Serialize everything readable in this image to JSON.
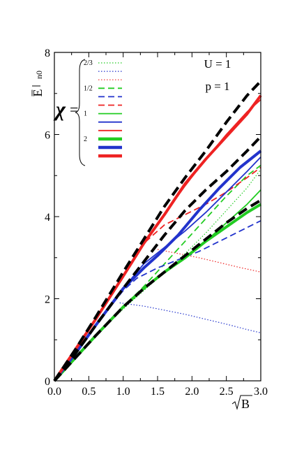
{
  "chart_data": {
    "type": "line",
    "ylabel": "E̅n0",
    "ylabel_main": "E̅",
    "ylabel_sub": "n0",
    "xlabel_symbol": "B",
    "xlim": [
      0,
      3
    ],
    "ylim": [
      0,
      8
    ],
    "xticks": [
      "0.0",
      "0.5",
      "1.0",
      "1.5",
      "2.0",
      "2.5",
      "3.0"
    ],
    "yticks": [
      "0",
      "2",
      "4",
      "6",
      "8"
    ],
    "grid": false,
    "annotations": [
      "U = 1",
      "p = 1"
    ],
    "legend": {
      "placement": "top-left",
      "symbol": "χ",
      "eq": "=",
      "group_labels": [
        "2/3",
        "1/2",
        "1",
        "2"
      ],
      "entries": [
        {
          "group": "2/3",
          "color": "#22cc22",
          "style": "dotted",
          "weight": "thin"
        },
        {
          "group": "2/3",
          "color": "#2233cc",
          "style": "dotted",
          "weight": "thin"
        },
        {
          "group": "2/3",
          "color": "#ee2222",
          "style": "dotted",
          "weight": "thin"
        },
        {
          "group": "1/2",
          "color": "#22cc22",
          "style": "dashed",
          "weight": "normal"
        },
        {
          "group": "1/2",
          "color": "#2233cc",
          "style": "dashed",
          "weight": "normal"
        },
        {
          "group": "1/2",
          "color": "#ee2222",
          "style": "dashed",
          "weight": "normal"
        },
        {
          "group": "1",
          "color": "#22cc22",
          "style": "solid",
          "weight": "normal"
        },
        {
          "group": "1",
          "color": "#2233cc",
          "style": "solid",
          "weight": "normal"
        },
        {
          "group": "1",
          "color": "#ee2222",
          "style": "solid",
          "weight": "normal"
        },
        {
          "group": "2",
          "color": "#22cc22",
          "style": "solid",
          "weight": "thick"
        },
        {
          "group": "2",
          "color": "#2233cc",
          "style": "solid",
          "weight": "thick"
        },
        {
          "group": "2",
          "color": "#ee2222",
          "style": "solid",
          "weight": "thick"
        }
      ]
    },
    "series": [
      {
        "chi": "2/3",
        "color": "#22cc22",
        "style": "dotted",
        "weight": "thin",
        "x": [
          0,
          0.3,
          0.6,
          1.0,
          1.3,
          1.6,
          1.9,
          2.2,
          2.5,
          2.8,
          3.0
        ],
        "y": [
          0,
          0.55,
          1.1,
          1.75,
          2.2,
          2.65,
          3.1,
          3.6,
          4.15,
          4.7,
          5.15
        ]
      },
      {
        "chi": "2/3",
        "color": "#2233cc",
        "style": "dotted",
        "weight": "thin",
        "x": [
          0.95,
          1.3,
          1.6,
          1.9,
          2.2,
          2.5,
          2.8,
          3.0
        ],
        "y": [
          1.9,
          1.82,
          1.72,
          1.62,
          1.5,
          1.38,
          1.25,
          1.17
        ]
      },
      {
        "chi": "2/3",
        "color": "#ee2222",
        "style": "dotted",
        "weight": "thin",
        "x": [
          1.5,
          1.8,
          2.1,
          2.4,
          2.7,
          3.0
        ],
        "y": [
          3.2,
          3.1,
          3.0,
          2.88,
          2.76,
          2.65
        ]
      },
      {
        "chi": "1/2",
        "color": "#22cc22",
        "style": "dashed",
        "weight": "normal",
        "x": [
          0,
          0.3,
          0.6,
          1.0,
          1.3,
          1.6,
          1.9,
          2.2,
          2.5,
          2.8,
          3.0
        ],
        "y": [
          0,
          0.55,
          1.1,
          1.8,
          2.3,
          2.85,
          3.4,
          3.95,
          4.5,
          5.0,
          5.25
        ]
      },
      {
        "chi": "1/2",
        "color": "#2233cc",
        "style": "dashed",
        "weight": "normal",
        "x": [
          0,
          0.3,
          0.6,
          1.0,
          1.2,
          1.5,
          1.8,
          2.1,
          2.4,
          2.7,
          3.0
        ],
        "y": [
          0,
          0.65,
          1.35,
          2.2,
          2.5,
          2.75,
          2.95,
          3.15,
          3.4,
          3.65,
          3.9
        ]
      },
      {
        "chi": "1/2",
        "color": "#ee2222",
        "style": "dashed",
        "weight": "normal",
        "x": [
          0,
          0.3,
          0.6,
          1.0,
          1.3,
          1.6,
          1.9,
          2.2,
          2.5,
          2.8,
          3.0
        ],
        "y": [
          0,
          0.75,
          1.5,
          2.55,
          3.35,
          3.8,
          4.05,
          4.3,
          4.6,
          4.95,
          5.2
        ]
      },
      {
        "chi": "1",
        "color": "#22cc22",
        "style": "solid",
        "weight": "normal",
        "x": [
          0,
          0.3,
          0.6,
          1.0,
          1.3,
          1.6,
          1.9,
          2.2,
          2.5,
          2.8,
          3.0
        ],
        "y": [
          0,
          0.55,
          1.1,
          1.8,
          2.25,
          2.65,
          3.0,
          3.4,
          3.85,
          4.3,
          4.65
        ]
      },
      {
        "chi": "1",
        "color": "#2233cc",
        "style": "solid",
        "weight": "normal",
        "x": [
          0,
          0.3,
          0.6,
          1.0,
          1.3,
          1.6,
          1.9,
          2.2,
          2.5,
          2.8,
          3.0
        ],
        "y": [
          0,
          0.65,
          1.35,
          2.25,
          2.85,
          3.25,
          3.65,
          4.1,
          4.6,
          5.1,
          5.45
        ]
      },
      {
        "chi": "1",
        "color": "#ee2222",
        "style": "solid",
        "weight": "normal",
        "x": [
          0,
          0.3,
          0.6,
          1.0,
          1.3,
          1.6,
          1.9,
          2.2,
          2.5,
          2.8,
          3.0
        ],
        "y": [
          0,
          0.75,
          1.5,
          2.55,
          3.35,
          4.05,
          4.75,
          5.4,
          6.0,
          6.55,
          6.85
        ]
      },
      {
        "chi": "2",
        "color": "#22cc22",
        "style": "solid",
        "weight": "thick",
        "x": [
          0,
          0.3,
          0.6,
          1.0,
          1.3,
          1.6,
          1.9,
          2.2,
          2.5,
          2.8,
          3.0
        ],
        "y": [
          0,
          0.55,
          1.1,
          1.8,
          2.25,
          2.65,
          3.0,
          3.4,
          3.75,
          4.1,
          4.3
        ]
      },
      {
        "chi": "2",
        "color": "#2233cc",
        "style": "solid",
        "weight": "thick",
        "x": [
          0,
          0.3,
          0.6,
          1.0,
          1.3,
          1.5,
          1.8,
          2.1,
          2.4,
          2.7,
          3.0
        ],
        "y": [
          0,
          0.65,
          1.35,
          2.25,
          2.75,
          3.05,
          3.55,
          4.15,
          4.7,
          5.2,
          5.6
        ]
      },
      {
        "chi": "2",
        "color": "#ee2222",
        "style": "solid",
        "weight": "thick",
        "x": [
          0,
          0.3,
          0.6,
          1.0,
          1.3,
          1.6,
          1.9,
          2.2,
          2.5,
          2.8,
          3.0
        ],
        "y": [
          0,
          0.75,
          1.5,
          2.55,
          3.35,
          4.05,
          4.8,
          5.4,
          5.95,
          6.5,
          6.95
        ]
      },
      {
        "chi": "",
        "color": "#000000",
        "style": "dashed",
        "weight": "thick",
        "x": [
          0,
          0.3,
          0.6,
          1.0,
          1.3,
          1.6,
          1.9,
          2.2,
          2.5,
          2.8,
          3.0
        ],
        "y": [
          0,
          0.55,
          1.1,
          1.8,
          2.25,
          2.65,
          3.05,
          3.45,
          3.85,
          4.2,
          4.4
        ]
      },
      {
        "chi": "",
        "color": "#000000",
        "style": "dashed",
        "weight": "thick",
        "x": [
          0,
          0.3,
          0.6,
          1.0,
          1.3,
          1.6,
          1.9,
          2.2,
          2.5,
          2.8,
          3.0
        ],
        "y": [
          0,
          0.65,
          1.35,
          2.25,
          2.9,
          3.55,
          4.15,
          4.65,
          5.1,
          5.6,
          5.95
        ]
      },
      {
        "chi": "",
        "color": "#000000",
        "style": "dashed",
        "weight": "thick",
        "x": [
          0,
          0.3,
          0.6,
          1.0,
          1.3,
          1.6,
          1.9,
          2.2,
          2.5,
          2.8,
          3.0
        ],
        "y": [
          0,
          0.75,
          1.55,
          2.65,
          3.45,
          4.25,
          4.95,
          5.6,
          6.3,
          6.95,
          7.3
        ]
      }
    ]
  }
}
